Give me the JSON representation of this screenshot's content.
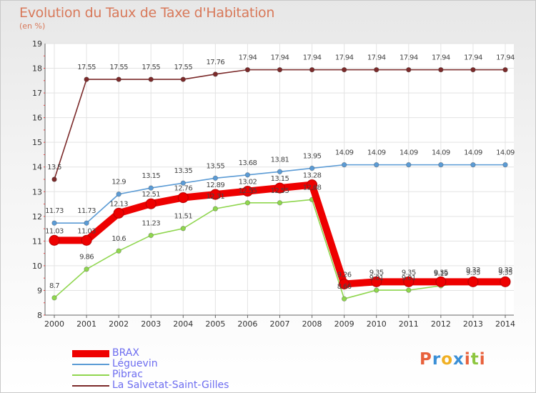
{
  "title": "Evolution du Taux de Taxe d'Habitation",
  "subtitle": "(en %)",
  "logo": {
    "text": "Proxiti",
    "colors": [
      "#e8613c",
      "#3a8fd6",
      "#f0b024",
      "#3a8fd6",
      "#e8613c",
      "#8dc63f",
      "#e8613c"
    ]
  },
  "chart_data": {
    "type": "line",
    "title": "Evolution du Taux de Taxe d'Habitation",
    "ylabel": "(en %)",
    "xlabel": "",
    "ylim": [
      8,
      19
    ],
    "yticks": [
      8,
      9,
      10,
      11,
      12,
      13,
      14,
      15,
      16,
      17,
      18,
      19
    ],
    "x": [
      "2000",
      "2001",
      "2002",
      "2003",
      "2004",
      "2005",
      "2006",
      "2007",
      "2008",
      "2009",
      "2010",
      "2011",
      "2012",
      "2013",
      "2014"
    ],
    "grid": true,
    "legend": "bottom-left",
    "series": [
      {
        "name": "BRAX",
        "color": "#ee0000",
        "emphasis": true,
        "values": [
          11.03,
          11.03,
          12.13,
          12.51,
          12.76,
          12.89,
          13.02,
          13.15,
          13.28,
          9.26,
          9.35,
          9.35,
          9.35,
          9.35,
          9.35
        ],
        "labels": [
          "11.03",
          "11.03",
          "12.13",
          "12.51",
          "12.76",
          "12.89",
          "13.02",
          "13.15",
          "13.28",
          "9.26",
          "9.35",
          "9.35",
          "9.35",
          "9.35",
          "9.35"
        ]
      },
      {
        "name": "Léguevin",
        "color": "#5b9bd5",
        "values": [
          11.73,
          11.73,
          12.9,
          13.15,
          13.35,
          13.55,
          13.68,
          13.81,
          13.95,
          14.09,
          14.09,
          14.09,
          14.09,
          14.09,
          14.09
        ],
        "labels": [
          "11.73",
          "11.73",
          "12.9",
          "13.15",
          "13.35",
          "13.55",
          "13.68",
          "13.81",
          "13.95",
          "14.09",
          "14.09",
          "14.09",
          "14.09",
          "14.09",
          "14.09"
        ]
      },
      {
        "name": "Pibrac",
        "color": "#8fd64e",
        "values": [
          8.7,
          9.86,
          10.6,
          11.23,
          11.51,
          12.31,
          12.55,
          12.55,
          12.68,
          8.66,
          9.01,
          9.01,
          9.19,
          9.33,
          9.33
        ],
        "labels": [
          "8.7",
          "9.86",
          "10.6",
          "11.23",
          "11.51",
          "12.31",
          "12.55",
          "12.55",
          "12.68",
          "8.66",
          "9.01",
          "9.01",
          "9.19",
          "9.33",
          "9.33"
        ]
      },
      {
        "name": "La Salvetat-Saint-Gilles",
        "color": "#7b2a2a",
        "values": [
          13.5,
          17.55,
          17.55,
          17.55,
          17.55,
          17.76,
          17.94,
          17.94,
          17.94,
          17.94,
          17.94,
          17.94,
          17.94,
          17.94,
          17.94
        ],
        "labels": [
          "13.5",
          "17.55",
          "17.55",
          "17.55",
          "17.55",
          "17.76",
          "17.94",
          "17.94",
          "17.94",
          "17.94",
          "17.94",
          "17.94",
          "17.94",
          "17.94",
          "17.94"
        ]
      }
    ]
  }
}
